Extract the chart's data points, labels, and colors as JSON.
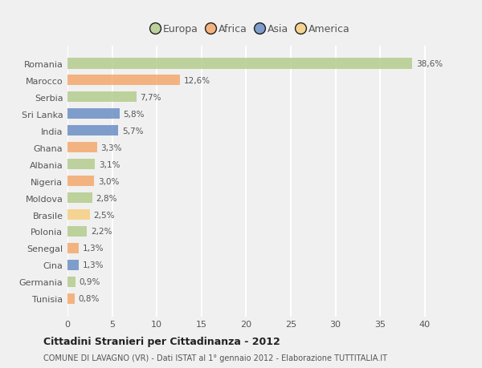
{
  "countries": [
    "Romania",
    "Marocco",
    "Serbia",
    "Sri Lanka",
    "India",
    "Ghana",
    "Albania",
    "Nigeria",
    "Moldova",
    "Brasile",
    "Polonia",
    "Senegal",
    "Cina",
    "Germania",
    "Tunisia"
  ],
  "values": [
    38.6,
    12.6,
    7.7,
    5.8,
    5.7,
    3.3,
    3.1,
    3.0,
    2.8,
    2.5,
    2.2,
    1.3,
    1.3,
    0.9,
    0.8
  ],
  "labels": [
    "38,6%",
    "12,6%",
    "7,7%",
    "5,8%",
    "5,7%",
    "3,3%",
    "3,1%",
    "3,0%",
    "2,8%",
    "2,5%",
    "2,2%",
    "1,3%",
    "1,3%",
    "0,9%",
    "0,8%"
  ],
  "colors": [
    "#b5cc8e",
    "#f4a96d",
    "#b5cc8e",
    "#6b8fc4",
    "#6b8fc4",
    "#f4a96d",
    "#b5cc8e",
    "#f4a96d",
    "#b5cc8e",
    "#f7d080",
    "#b5cc8e",
    "#f4a96d",
    "#6b8fc4",
    "#b5cc8e",
    "#f4a96d"
  ],
  "continent_colors": {
    "Europa": "#b5cc8e",
    "Africa": "#f4a96d",
    "Asia": "#6b8fc4",
    "America": "#f7d080"
  },
  "title": "Cittadini Stranieri per Cittadinanza - 2012",
  "subtitle": "COMUNE DI LAVAGNO (VR) - Dati ISTAT al 1° gennaio 2012 - Elaborazione TUTTITALIA.IT",
  "xlim": [
    0,
    41
  ],
  "xticks": [
    0,
    5,
    10,
    15,
    20,
    25,
    30,
    35,
    40
  ],
  "bg_color": "#f0f0f0",
  "plot_bg_color": "#f0f0f0",
  "grid_color": "#ffffff",
  "bar_height": 0.65,
  "label_color": "#555555",
  "title_color": "#222222",
  "subtitle_color": "#555555"
}
